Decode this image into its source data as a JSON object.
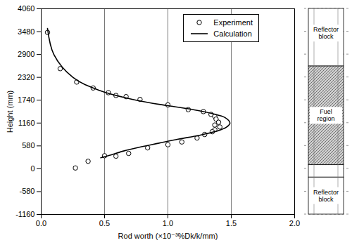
{
  "chart_data": {
    "type": "scatter",
    "x_label": "Rod worth (×10⁻³%Dk/k/mm)",
    "y_label": "Height (mm)",
    "xlim": [
      0,
      2
    ],
    "ylim": [
      -1160,
      4060
    ],
    "xticks": [
      {
        "value": 0,
        "label": "0.0"
      },
      0.5,
      {
        "value": 1,
        "label": "1.0"
      },
      1.5,
      {
        "value": 2,
        "label": "2.0"
      }
    ],
    "yticks": [
      -1160,
      -580,
      0,
      580,
      1160,
      1740,
      2320,
      2900,
      3480,
      4060
    ],
    "grid": "x",
    "legend": "top-right",
    "series": [
      {
        "name": "Experiment",
        "type": "scatter",
        "marker": "circle",
        "color": "#000000",
        "x": [
          0.05,
          0.15,
          0.28,
          0.41,
          0.53,
          0.59,
          0.67,
          0.78,
          1.0,
          1.16,
          1.28,
          1.34,
          1.37,
          1.38,
          1.4,
          1.37,
          1.41,
          1.37,
          1.35,
          1.29,
          1.23,
          1.11,
          1.0,
          0.84,
          0.69,
          0.59,
          0.5,
          0.37,
          0.27
        ],
        "values": [
          3460,
          2540,
          2200,
          2050,
          1930,
          1860,
          1830,
          1760,
          1620,
          1500,
          1450,
          1380,
          1330,
          1260,
          1180,
          1110,
          1060,
          990,
          940,
          870,
          780,
          680,
          610,
          530,
          390,
          320,
          330,
          190,
          20
        ]
      },
      {
        "name": "Calculation",
        "type": "line",
        "line_style": "solid",
        "color": "#000000",
        "x": [
          0.05,
          0.1,
          0.25,
          0.45,
          0.75,
          1.0,
          1.2,
          1.35,
          1.45,
          1.49,
          1.46,
          1.38,
          1.25,
          1.08,
          0.93,
          0.78,
          0.65,
          0.55,
          0.47
        ],
        "values": [
          3560,
          2900,
          2320,
          2000,
          1740,
          1600,
          1500,
          1400,
          1300,
          1160,
          1050,
          950,
          850,
          750,
          650,
          550,
          450,
          350,
          280
        ]
      }
    ],
    "annotations": [
      "Reflector block",
      "Fuel region",
      "Reflector block"
    ]
  }
}
